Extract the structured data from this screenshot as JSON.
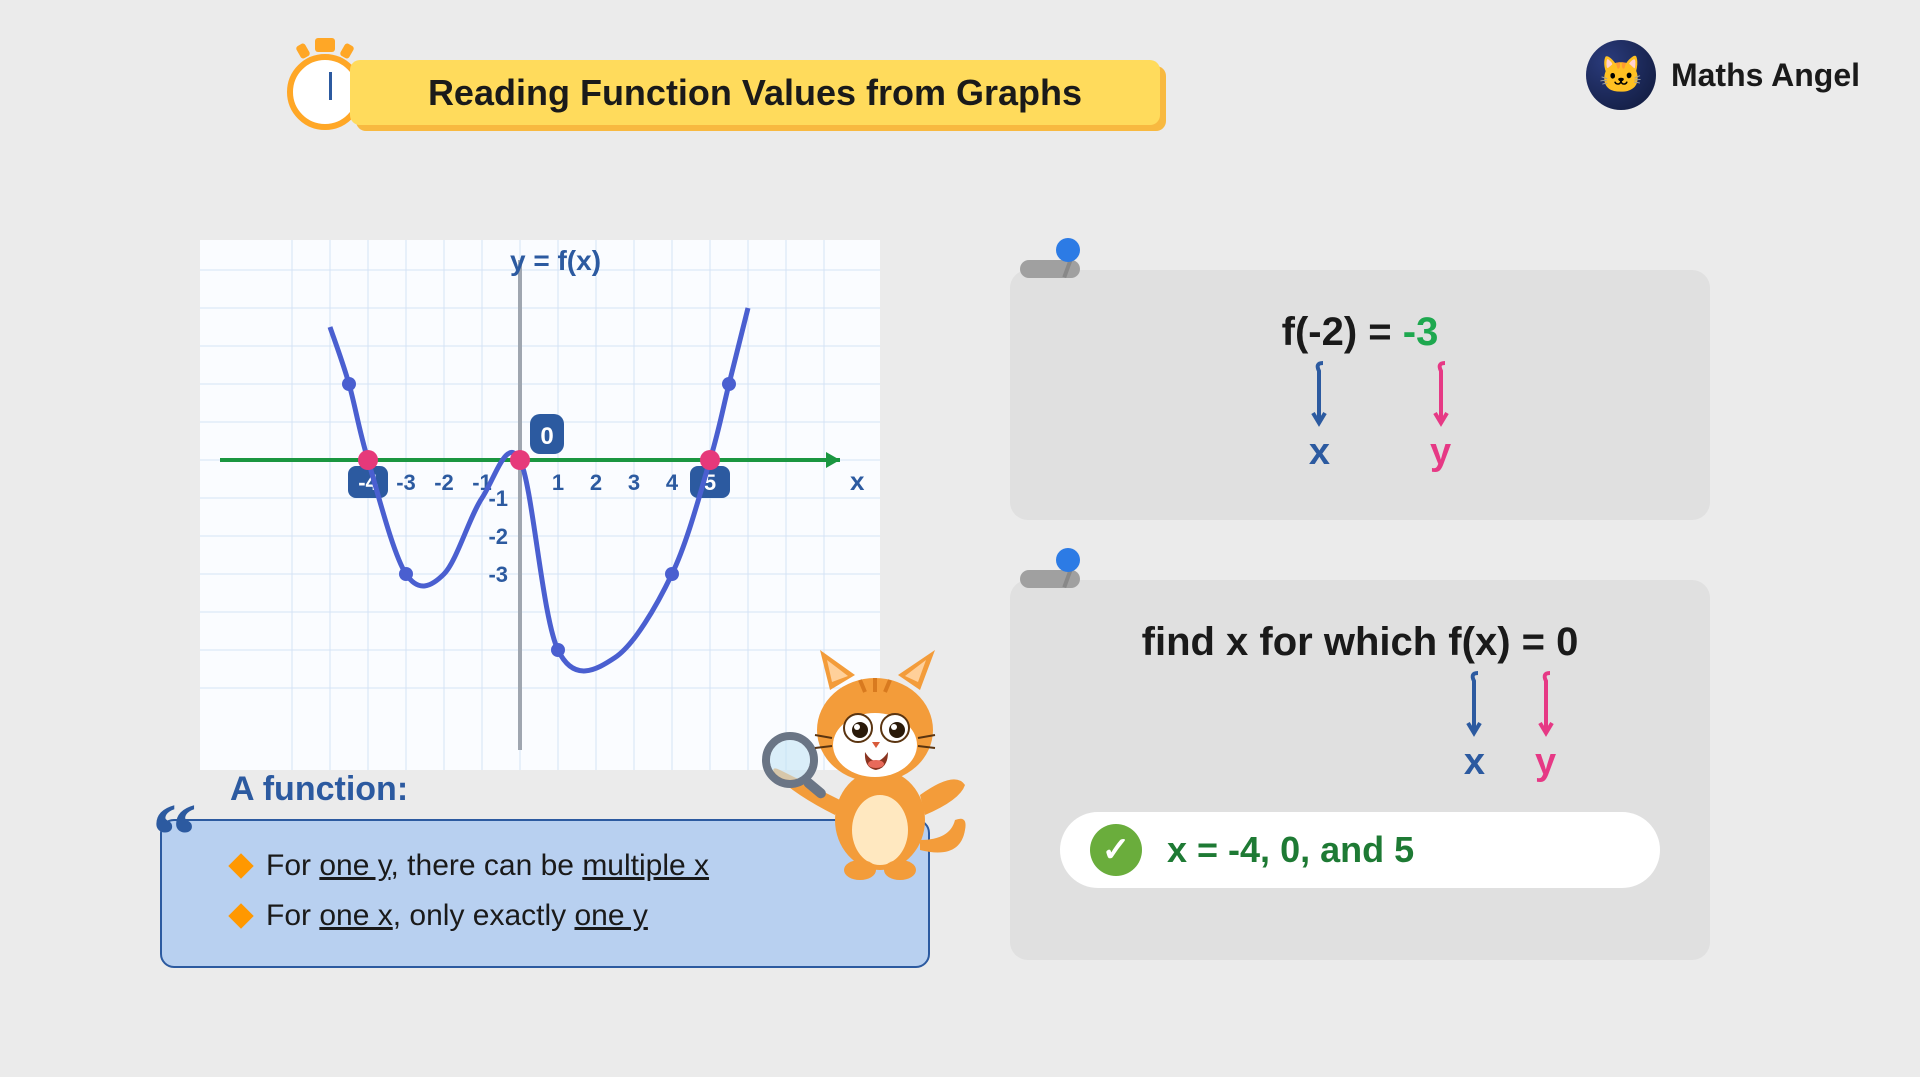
{
  "brand": {
    "name": "Maths Angel",
    "logo_emoji": "🐱"
  },
  "title": "Reading Function Values from Graphs",
  "colors": {
    "bg": "#ebebeb",
    "header_bg": "#ffdb5c",
    "header_shadow": "#f8b940",
    "axis_blue": "#2c5aa0",
    "axis_green": "#1a9640",
    "curve": "#4a5fd0",
    "root_marker": "#e6397a",
    "grid": "#d4e3f5",
    "card_bg": "#e0e0e0",
    "funcbox_bg": "#b8d0f0",
    "accent_orange": "#ff9800",
    "pink": "#e63985",
    "green_text": "#1ea84f",
    "answer_green": "#1e7a34",
    "check_bg": "#6aad3c",
    "pin_head": "#2c7be5"
  },
  "graph": {
    "label": "y = f(x)",
    "x_axis_label": "x",
    "x_ticks": [
      -4,
      -3,
      -2,
      -1,
      1,
      2,
      3,
      4,
      5
    ],
    "y_ticks_neg": [
      -1,
      -2,
      -3
    ],
    "origin_label": "0",
    "highlighted_x": [
      -4,
      5
    ],
    "roots": [
      -4,
      0,
      5
    ],
    "curve_points": [
      {
        "x": -5,
        "y": 3.5
      },
      {
        "x": -4.5,
        "y": 2
      },
      {
        "x": -4,
        "y": 0
      },
      {
        "x": -3,
        "y": -3
      },
      {
        "x": -2,
        "y": -3
      },
      {
        "x": -1,
        "y": -1
      },
      {
        "x": 0,
        "y": 0
      },
      {
        "x": 1,
        "y": -5
      },
      {
        "x": 2.5,
        "y": -5.2
      },
      {
        "x": 4,
        "y": -3
      },
      {
        "x": 5,
        "y": 0
      },
      {
        "x": 5.5,
        "y": 2
      },
      {
        "x": 6,
        "y": 4
      }
    ],
    "point_markers": [
      {
        "x": -4.5,
        "y": 2
      },
      {
        "x": -3,
        "y": -3
      },
      {
        "x": 1,
        "y": -5
      },
      {
        "x": 4,
        "y": -3
      },
      {
        "x": 5.5,
        "y": 2
      }
    ],
    "grid_xlim": [
      -6,
      8
    ],
    "grid_ylim": [
      -6,
      5
    ]
  },
  "func_def": {
    "heading": "A function:",
    "line1_pre": "For ",
    "line1_u1": "one y",
    "line1_mid": ", there can be ",
    "line1_u2": "multiple x",
    "line2_pre": "For ",
    "line2_u1": "one x",
    "line2_mid": ",  only exactly ",
    "line2_u2": "one y"
  },
  "card1": {
    "lhs": "f(-2)  = ",
    "rhs": "-3",
    "x_label": "x",
    "y_label": "y"
  },
  "card2": {
    "question": "find x for which f(x) = 0",
    "x_label": "x",
    "y_label": "y",
    "answer": "x  =  -4,  0,  and 5"
  }
}
